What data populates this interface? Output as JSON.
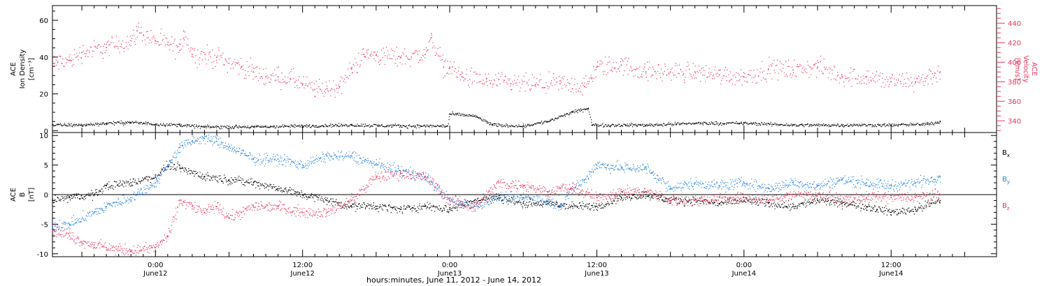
{
  "colors": {
    "black": "#000000",
    "pink": "#e8335f",
    "blue": "#1f7fe0"
  },
  "xlabel": "hours:minutes, June 11, 2012 - June 14, 2012",
  "x_ticks": [
    {
      "t": 0,
      "time": "0:00",
      "date": "June12"
    },
    {
      "t": 12,
      "time": "12:00",
      "date": "June12"
    },
    {
      "t": 24,
      "time": "0:00",
      "date": "June13"
    },
    {
      "t": 36,
      "time": "12:00",
      "date": "June13"
    },
    {
      "t": 48,
      "time": "0:00",
      "date": "June14"
    },
    {
      "t": 60,
      "time": "12:00",
      "date": "June14"
    }
  ],
  "top_panel": {
    "left_label": [
      "ACE",
      "Ion Density",
      "[cm⁻³]"
    ],
    "right_label": [
      "ACE",
      "Velocity",
      "[km/s]"
    ],
    "left_ticks": [
      "0",
      "20",
      "40",
      "60"
    ],
    "right_ticks": [
      "340",
      "360",
      "380",
      "400",
      "420",
      "440"
    ]
  },
  "bottom_panel": {
    "left_label": [
      "ACE",
      "B",
      "[nT]"
    ],
    "left_ticks": [
      "-10",
      "-5",
      "0",
      "5",
      "10"
    ],
    "legend": [
      {
        "label": "B",
        "sub": "x",
        "color": "#000000"
      },
      {
        "label": "B",
        "sub": "y",
        "color": "#1f7fe0"
      },
      {
        "label": "B",
        "sub": "z",
        "color": "#e8335f"
      }
    ]
  },
  "chart_data": [
    {
      "type": "scatter",
      "title": "",
      "x_unit": "hours relative to 2012-06-12 00:00 UT",
      "xlim": [
        -8.4,
        68.6
      ],
      "series": [
        {
          "name": "Ion Density",
          "axis": "left",
          "ylim": [
            -1,
            68
          ],
          "color": "#000000",
          "points": [
            [
              -8.4,
              3
            ],
            [
              -6,
              3
            ],
            [
              -4,
              4
            ],
            [
              -2,
              4.5
            ],
            [
              0,
              3.5
            ],
            [
              2,
              3
            ],
            [
              4,
              2
            ],
            [
              8,
              2
            ],
            [
              12,
              2.5
            ],
            [
              16,
              3
            ],
            [
              20,
              2.5
            ],
            [
              23.8,
              2.5
            ],
            [
              24,
              9
            ],
            [
              26,
              8
            ],
            [
              27.5,
              3
            ],
            [
              30,
              2.5
            ],
            [
              32,
              5
            ],
            [
              34,
              10
            ],
            [
              35.3,
              12
            ],
            [
              35.6,
              3
            ],
            [
              40,
              3
            ],
            [
              44,
              4
            ],
            [
              48,
              4
            ],
            [
              52,
              3
            ],
            [
              56,
              3
            ],
            [
              60,
              3
            ],
            [
              63,
              3.5
            ],
            [
              64,
              5
            ]
          ]
        },
        {
          "name": "Velocity",
          "axis": "right",
          "ylim": [
            328,
            458
          ],
          "color": "#e8335f",
          "points": [
            [
              -8.4,
              398
            ],
            [
              -7,
              402
            ],
            [
              -6,
              410
            ],
            [
              -4,
              415
            ],
            [
              -2,
              422
            ],
            [
              -1.5,
              432
            ],
            [
              0,
              422
            ],
            [
              1,
              418
            ],
            [
              2,
              412
            ],
            [
              2.3,
              432
            ],
            [
              3,
              408
            ],
            [
              5,
              405
            ],
            [
              7,
              395
            ],
            [
              8,
              390
            ],
            [
              9,
              385
            ],
            [
              10,
              385
            ],
            [
              11,
              383
            ],
            [
              12,
              377
            ],
            [
              13,
              372
            ],
            [
              14,
              373
            ],
            [
              15,
              375
            ],
            [
              16,
              393
            ],
            [
              17,
              408
            ],
            [
              18,
              407
            ],
            [
              20,
              405
            ],
            [
              22,
              408
            ],
            [
              22.5,
              425
            ],
            [
              23.5,
              395
            ],
            [
              24,
              395
            ],
            [
              25,
              385
            ],
            [
              27,
              380
            ],
            [
              29,
              378
            ],
            [
              31,
              377
            ],
            [
              33,
              378
            ],
            [
              35,
              375
            ],
            [
              35.6,
              384
            ],
            [
              36,
              395
            ],
            [
              38,
              397
            ],
            [
              40,
              390
            ],
            [
              42,
              390
            ],
            [
              44,
              390
            ],
            [
              46,
              387
            ],
            [
              48,
              385
            ],
            [
              50,
              393
            ],
            [
              52,
              392
            ],
            [
              54,
              395
            ],
            [
              56,
              385
            ],
            [
              58,
              385
            ],
            [
              60,
              380
            ],
            [
              62,
              380
            ],
            [
              64,
              390
            ]
          ]
        }
      ]
    },
    {
      "type": "scatter",
      "title": "",
      "x_unit": "hours relative to 2012-06-12 00:00 UT",
      "xlim": [
        -8.4,
        68.6
      ],
      "ylim": [
        -10.5,
        10.5
      ],
      "series": [
        {
          "name": "Bx",
          "color": "#000000",
          "points": [
            [
              -8.4,
              -1
            ],
            [
              -7,
              -0.5
            ],
            [
              -5,
              0
            ],
            [
              -4,
              1.5
            ],
            [
              -2,
              2
            ],
            [
              0,
              3
            ],
            [
              1,
              5
            ],
            [
              2,
              4.5
            ],
            [
              4,
              3
            ],
            [
              6,
              2.5
            ],
            [
              8,
              2
            ],
            [
              10,
              1
            ],
            [
              12,
              0
            ],
            [
              14,
              -1
            ],
            [
              16,
              -2
            ],
            [
              18,
              -2
            ],
            [
              20,
              -2.5
            ],
            [
              22,
              -2
            ],
            [
              24,
              -2.5
            ],
            [
              26,
              -1
            ],
            [
              28,
              -0.5
            ],
            [
              30,
              -1.5
            ],
            [
              32,
              -1.5
            ],
            [
              34,
              -2
            ],
            [
              36,
              -2
            ],
            [
              38,
              -0.5
            ],
            [
              40,
              0
            ],
            [
              42,
              -1
            ],
            [
              44,
              -1
            ],
            [
              46,
              -1.5
            ],
            [
              48,
              -1
            ],
            [
              50,
              -1.5
            ],
            [
              52,
              -2
            ],
            [
              54,
              -1
            ],
            [
              56,
              -1.5
            ],
            [
              58,
              -2
            ],
            [
              60,
              -3
            ],
            [
              62,
              -2.5
            ],
            [
              64,
              -1
            ]
          ]
        },
        {
          "name": "By",
          "color": "#1f7fe0",
          "points": [
            [
              -8.4,
              -5.5
            ],
            [
              -7,
              -5
            ],
            [
              -5,
              -3
            ],
            [
              -4,
              -2
            ],
            [
              -2,
              -0.5
            ],
            [
              0,
              2
            ],
            [
              1,
              5
            ],
            [
              2,
              8
            ],
            [
              3,
              9
            ],
            [
              4,
              9.5
            ],
            [
              5,
              9
            ],
            [
              6,
              8
            ],
            [
              7,
              7
            ],
            [
              8,
              6
            ],
            [
              10,
              6
            ],
            [
              12,
              5
            ],
            [
              14,
              6.5
            ],
            [
              16,
              6.5
            ],
            [
              18,
              5
            ],
            [
              20,
              4
            ],
            [
              22,
              3
            ],
            [
              24,
              -1
            ],
            [
              26,
              -2
            ],
            [
              28,
              -0.5
            ],
            [
              30,
              -0.5
            ],
            [
              32,
              -1
            ],
            [
              33,
              -2
            ],
            [
              34,
              1
            ],
            [
              35,
              2.5
            ],
            [
              36,
              5
            ],
            [
              38,
              4.5
            ],
            [
              40,
              4.5
            ],
            [
              42,
              1
            ],
            [
              44,
              2
            ],
            [
              46,
              1.5
            ],
            [
              48,
              2
            ],
            [
              50,
              1
            ],
            [
              52,
              2
            ],
            [
              54,
              1.5
            ],
            [
              56,
              2.5
            ],
            [
              58,
              2
            ],
            [
              60,
              1.5
            ],
            [
              62,
              2
            ],
            [
              64,
              3
            ]
          ]
        },
        {
          "name": "Bz",
          "color": "#e8335f",
          "points": [
            [
              -8.4,
              -6
            ],
            [
              -7,
              -7
            ],
            [
              -6,
              -8
            ],
            [
              -5,
              -8.5
            ],
            [
              -4,
              -9
            ],
            [
              -2,
              -9.5
            ],
            [
              0,
              -9
            ],
            [
              1,
              -7
            ],
            [
              2,
              -1
            ],
            [
              3,
              -2
            ],
            [
              4,
              -3
            ],
            [
              5,
              -2
            ],
            [
              6,
              -4
            ],
            [
              7,
              -3
            ],
            [
              8,
              -2
            ],
            [
              10,
              -2
            ],
            [
              12,
              -3
            ],
            [
              14,
              -3
            ],
            [
              16,
              -1
            ],
            [
              18,
              3
            ],
            [
              20,
              3.5
            ],
            [
              22,
              3
            ],
            [
              24,
              -1
            ],
            [
              25,
              -1.5
            ],
            [
              26,
              -2
            ],
            [
              28,
              2
            ],
            [
              30,
              1.5
            ],
            [
              32,
              0.5
            ],
            [
              33,
              1
            ],
            [
              34,
              1
            ],
            [
              36,
              -0.5
            ],
            [
              38,
              0.5
            ],
            [
              40,
              0.5
            ],
            [
              42,
              -1
            ],
            [
              44,
              -1
            ],
            [
              46,
              -0.5
            ],
            [
              48,
              -0.5
            ],
            [
              50,
              -1
            ],
            [
              52,
              0
            ],
            [
              54,
              0
            ],
            [
              56,
              -1
            ],
            [
              58,
              -0.5
            ],
            [
              60,
              -0.5
            ],
            [
              62,
              -0.5
            ],
            [
              64,
              0
            ]
          ]
        }
      ]
    }
  ]
}
